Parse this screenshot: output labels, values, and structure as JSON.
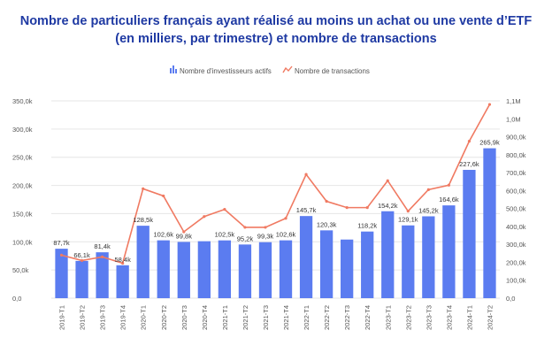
{
  "title_line1": "Nombre de particuliers français ayant réalisé au moins un achat ou une vente d’ETF",
  "title_line2": "(en milliers, par trimestre) et nombre de transactions",
  "colors": {
    "bar": "#5b7cf0",
    "line": "#f07a62",
    "grid": "#e6e6e6",
    "title": "#1f3aa3"
  },
  "chart_data": {
    "type": "bar",
    "title": "Nombre de particuliers français ayant réalisé au moins un achat ou une vente d’ETF (en milliers, par trimestre) et nombre de transactions",
    "categories": [
      "2019-T1",
      "2019-T2",
      "2019-T3",
      "2019-T4",
      "2020-T1",
      "2020-T2",
      "2020-T3",
      "2020-T4",
      "2021-T1",
      "2021-T2",
      "2021-T3",
      "2021-T4",
      "2022-T1",
      "2022-T2",
      "2022-T3",
      "2022-T4",
      "2023-T1",
      "2023-T2",
      "2023-T3",
      "2023-T4",
      "2024-T1",
      "2024-T2"
    ],
    "series": [
      {
        "name": "Nombre d'investisseurs actifs",
        "type": "bar",
        "axis": "left",
        "values": [
          87.7,
          66.1,
          81.4,
          58.4,
          128.5,
          102.6,
          99.8,
          101,
          102.5,
          95.2,
          99.3,
          102.6,
          145.7,
          120.3,
          104,
          118.2,
          154.2,
          129.1,
          145.2,
          164.6,
          227.6,
          265.9
        ],
        "labels": [
          "87,7k",
          "66,1k",
          "81,4k",
          "58,4k",
          "128,5k",
          "102,6k",
          "99,8k",
          "",
          "102,5k",
          "95,2k",
          "99,3k",
          "102,6k",
          "145,7k",
          "120,3k",
          "",
          "118,2k",
          "154,2k",
          "129,1k",
          "145,2k",
          "164,6k",
          "227,6k",
          "265,9k"
        ]
      },
      {
        "name": "Nombre de transactions",
        "type": "line",
        "axis": "right",
        "values": [
          240,
          210,
          230,
          195,
          610,
          570,
          370,
          455,
          495,
          395,
          395,
          445,
          690,
          540,
          505,
          505,
          655,
          485,
          605,
          630,
          875,
          1080
        ]
      }
    ],
    "y_left": {
      "ylim": [
        0,
        350
      ],
      "ticks": [
        0,
        50,
        100,
        150,
        200,
        250,
        300,
        350
      ],
      "tick_labels": [
        "0,0",
        "50,0k",
        "100,0k",
        "150,0k",
        "200,0k",
        "250,0k",
        "300,0k",
        "350,0k"
      ]
    },
    "y_right": {
      "ylim": [
        0,
        1100
      ],
      "ticks": [
        0,
        100,
        200,
        300,
        400,
        500,
        600,
        700,
        800,
        900,
        1000,
        1100
      ],
      "tick_labels": [
        "0,0",
        "100,0k",
        "200,0k",
        "300,0k",
        "400,0k",
        "500,0k",
        "600,0k",
        "700,0k",
        "800,0k",
        "900,0k",
        "1,0M",
        "1,1M"
      ]
    },
    "legend_position": "top-center",
    "grid": true
  }
}
